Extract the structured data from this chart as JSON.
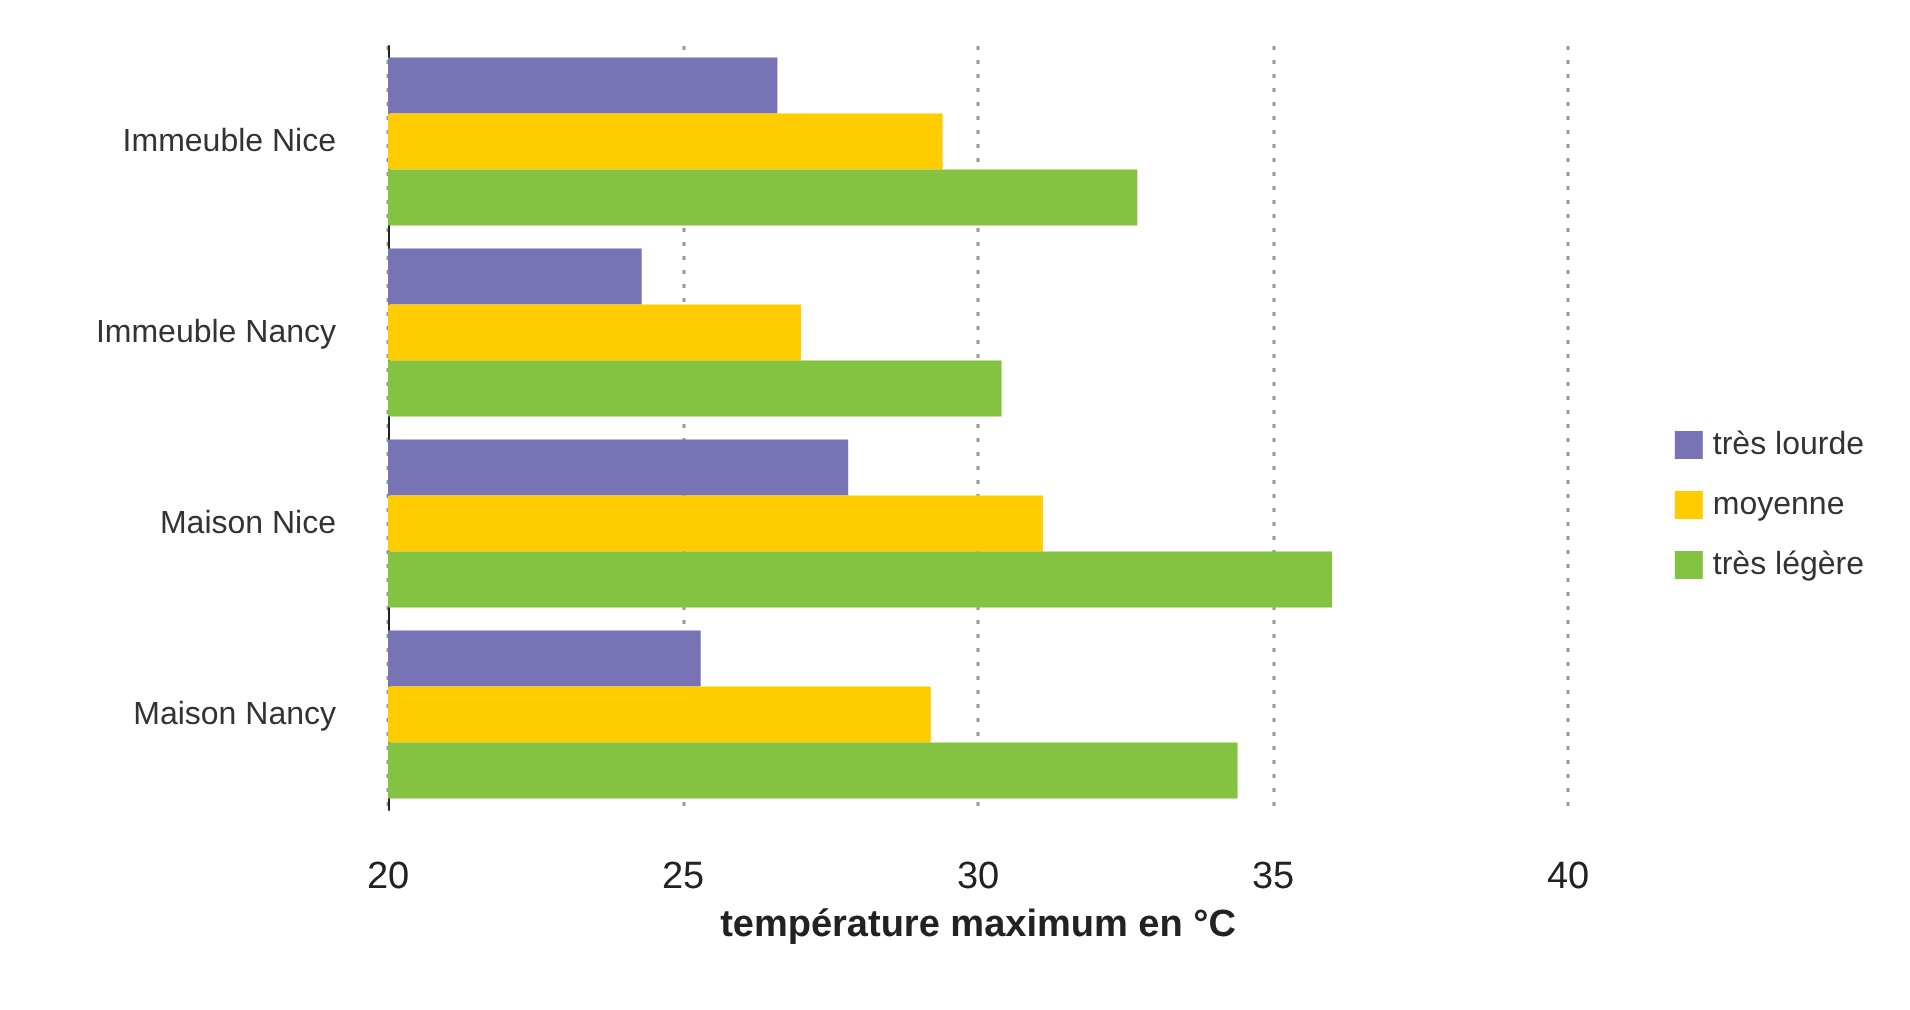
{
  "chart_data": {
    "type": "bar",
    "orientation": "horizontal",
    "xlabel": "température maximum en °C",
    "categories": [
      "Immeuble Nice",
      "Immeuble Nancy",
      "Maison Nice",
      "Maison Nancy"
    ],
    "series": [
      {
        "name": "très lourde",
        "color": "#7773b5",
        "values": [
          26.6,
          24.3,
          27.8,
          25.3
        ]
      },
      {
        "name": "moyenne",
        "color": "#ffcc00",
        "values": [
          29.4,
          27.0,
          31.1,
          29.2
        ]
      },
      {
        "name": "très légère",
        "color": "#84c341",
        "values": [
          32.7,
          30.4,
          36.0,
          34.4
        ]
      }
    ],
    "xlim": [
      20,
      40
    ],
    "xticks": [
      20,
      25,
      30,
      35,
      40
    ],
    "grid": "x",
    "legend": "right"
  }
}
